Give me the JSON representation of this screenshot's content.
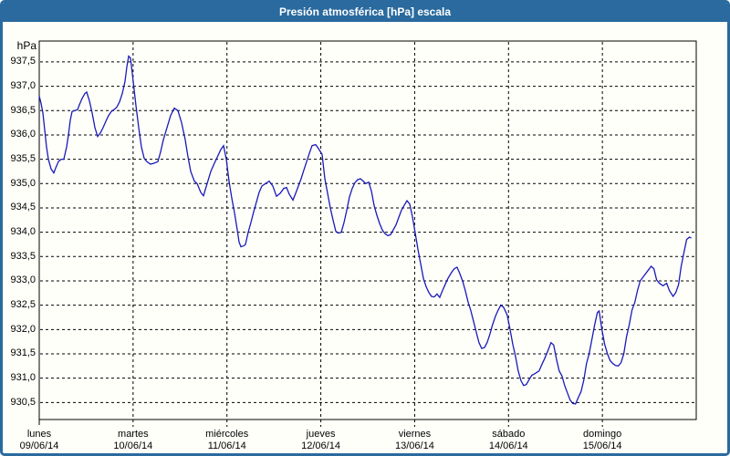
{
  "window": {
    "title": "Presión atmosférica [hPa] escala"
  },
  "colors": {
    "accent_blue": "#2a6a9e",
    "line_blue": "#1a1ab9",
    "grid_black": "#000000",
    "plot_background": "#fffffa",
    "title_text": "#ffffff"
  },
  "chart_data": {
    "type": "line",
    "title": "Presión atmosférica [hPa] escala",
    "ylabel": "hPa",
    "xlabel": "",
    "grid": "dashed",
    "legend": "none",
    "ylim": [
      930.15,
      937.93
    ],
    "x_domain_days": [
      0,
      7
    ],
    "yticks": [
      {
        "value": 937.5,
        "label": "937,5"
      },
      {
        "value": 937.0,
        "label": "937,0"
      },
      {
        "value": 936.5,
        "label": "936,5"
      },
      {
        "value": 936.0,
        "label": "936,0"
      },
      {
        "value": 935.5,
        "label": "935,5"
      },
      {
        "value": 935.0,
        "label": "935,0"
      },
      {
        "value": 934.5,
        "label": "934,5"
      },
      {
        "value": 934.0,
        "label": "934,0"
      },
      {
        "value": 933.5,
        "label": "933,5"
      },
      {
        "value": 933.0,
        "label": "933,0"
      },
      {
        "value": 932.5,
        "label": "932,5"
      },
      {
        "value": 932.0,
        "label": "932,0"
      },
      {
        "value": 931.5,
        "label": "931,5"
      },
      {
        "value": 931.0,
        "label": "931,0"
      },
      {
        "value": 930.5,
        "label": "930,5"
      }
    ],
    "xticks": [
      {
        "day": "lunes",
        "date": "09/06/14"
      },
      {
        "day": "martes",
        "date": "10/06/14"
      },
      {
        "day": "miércoles",
        "date": "11/06/14"
      },
      {
        "day": "jueves",
        "date": "12/06/14"
      },
      {
        "day": "viernes",
        "date": "13/06/14"
      },
      {
        "day": "sábado",
        "date": "14/06/14"
      },
      {
        "day": "domingo",
        "date": "15/06/14"
      }
    ],
    "series": [
      {
        "name": "Presión atmosférica",
        "unit": "hPa",
        "points": [
          [
            0.0,
            936.8
          ],
          [
            0.019,
            936.65
          ],
          [
            0.039,
            936.45
          ],
          [
            0.058,
            936.1
          ],
          [
            0.078,
            935.75
          ],
          [
            0.097,
            935.5
          ],
          [
            0.126,
            935.3
          ],
          [
            0.156,
            935.22
          ],
          [
            0.175,
            935.32
          ],
          [
            0.204,
            935.45
          ],
          [
            0.233,
            935.5
          ],
          [
            0.262,
            935.5
          ],
          [
            0.292,
            935.75
          ],
          [
            0.311,
            936.0
          ],
          [
            0.331,
            936.3
          ],
          [
            0.35,
            936.48
          ],
          [
            0.379,
            936.5
          ],
          [
            0.408,
            936.52
          ],
          [
            0.428,
            936.62
          ],
          [
            0.457,
            936.75
          ],
          [
            0.486,
            936.85
          ],
          [
            0.506,
            936.88
          ],
          [
            0.535,
            936.7
          ],
          [
            0.564,
            936.45
          ],
          [
            0.593,
            936.15
          ],
          [
            0.622,
            935.97
          ],
          [
            0.651,
            936.04
          ],
          [
            0.681,
            936.15
          ],
          [
            0.71,
            936.28
          ],
          [
            0.739,
            936.4
          ],
          [
            0.768,
            936.48
          ],
          [
            0.797,
            936.52
          ],
          [
            0.826,
            936.57
          ],
          [
            0.856,
            936.68
          ],
          [
            0.885,
            936.85
          ],
          [
            0.914,
            937.1
          ],
          [
            0.933,
            937.4
          ],
          [
            0.953,
            937.62
          ],
          [
            0.972,
            937.58
          ],
          [
            1.001,
            937.1
          ],
          [
            1.031,
            936.6
          ],
          [
            1.06,
            936.15
          ],
          [
            1.089,
            935.75
          ],
          [
            1.118,
            935.52
          ],
          [
            1.147,
            935.45
          ],
          [
            1.186,
            935.4
          ],
          [
            1.225,
            935.42
          ],
          [
            1.264,
            935.45
          ],
          [
            1.293,
            935.65
          ],
          [
            1.322,
            935.9
          ],
          [
            1.361,
            936.15
          ],
          [
            1.4,
            936.4
          ],
          [
            1.439,
            936.55
          ],
          [
            1.478,
            936.5
          ],
          [
            1.517,
            936.25
          ],
          [
            1.556,
            935.9
          ],
          [
            1.585,
            935.55
          ],
          [
            1.614,
            935.25
          ],
          [
            1.653,
            935.05
          ],
          [
            1.682,
            935.0
          ],
          [
            1.721,
            934.82
          ],
          [
            1.75,
            934.75
          ],
          [
            1.789,
            935.0
          ],
          [
            1.828,
            935.25
          ],
          [
            1.867,
            935.42
          ],
          [
            1.906,
            935.58
          ],
          [
            1.935,
            935.7
          ],
          [
            1.964,
            935.78
          ],
          [
            1.993,
            935.5
          ],
          [
            2.022,
            935.05
          ],
          [
            2.051,
            934.7
          ],
          [
            2.081,
            934.4
          ],
          [
            2.11,
            934.05
          ],
          [
            2.129,
            933.8
          ],
          [
            2.149,
            933.7
          ],
          [
            2.178,
            933.72
          ],
          [
            2.197,
            933.75
          ],
          [
            2.226,
            934.0
          ],
          [
            2.256,
            934.2
          ],
          [
            2.285,
            934.42
          ],
          [
            2.314,
            934.62
          ],
          [
            2.343,
            934.82
          ],
          [
            2.372,
            934.95
          ],
          [
            2.411,
            935.0
          ],
          [
            2.45,
            935.05
          ],
          [
            2.489,
            934.95
          ],
          [
            2.528,
            934.74
          ],
          [
            2.567,
            934.8
          ],
          [
            2.606,
            934.9
          ],
          [
            2.635,
            934.92
          ],
          [
            2.664,
            934.78
          ],
          [
            2.703,
            934.66
          ],
          [
            2.732,
            934.8
          ],
          [
            2.761,
            934.95
          ],
          [
            2.79,
            935.1
          ],
          [
            2.819,
            935.28
          ],
          [
            2.849,
            935.45
          ],
          [
            2.878,
            935.62
          ],
          [
            2.907,
            935.78
          ],
          [
            2.946,
            935.8
          ],
          [
            2.975,
            935.72
          ],
          [
            3.014,
            935.6
          ],
          [
            3.043,
            935.1
          ],
          [
            3.072,
            934.8
          ],
          [
            3.101,
            934.5
          ],
          [
            3.131,
            934.25
          ],
          [
            3.16,
            934.02
          ],
          [
            3.189,
            933.98
          ],
          [
            3.218,
            934.0
          ],
          [
            3.247,
            934.2
          ],
          [
            3.276,
            934.45
          ],
          [
            3.305,
            934.72
          ],
          [
            3.335,
            934.9
          ],
          [
            3.364,
            935.02
          ],
          [
            3.393,
            935.08
          ],
          [
            3.422,
            935.1
          ],
          [
            3.451,
            935.05
          ],
          [
            3.48,
            935.0
          ],
          [
            3.51,
            935.03
          ],
          [
            3.539,
            934.85
          ],
          [
            3.568,
            934.55
          ],
          [
            3.597,
            934.35
          ],
          [
            3.626,
            934.18
          ],
          [
            3.655,
            934.05
          ],
          [
            3.684,
            933.97
          ],
          [
            3.714,
            933.93
          ],
          [
            3.743,
            933.95
          ],
          [
            3.772,
            934.05
          ],
          [
            3.801,
            934.15
          ],
          [
            3.83,
            934.3
          ],
          [
            3.859,
            934.45
          ],
          [
            3.888,
            934.55
          ],
          [
            3.918,
            934.65
          ],
          [
            3.947,
            934.58
          ],
          [
            3.976,
            934.32
          ],
          [
            4.005,
            934.0
          ],
          [
            4.035,
            933.65
          ],
          [
            4.064,
            933.35
          ],
          [
            4.093,
            933.05
          ],
          [
            4.122,
            932.88
          ],
          [
            4.151,
            932.76
          ],
          [
            4.18,
            932.68
          ],
          [
            4.209,
            932.67
          ],
          [
            4.238,
            932.73
          ],
          [
            4.267,
            932.66
          ],
          [
            4.296,
            932.8
          ],
          [
            4.326,
            932.93
          ],
          [
            4.355,
            933.05
          ],
          [
            4.394,
            933.18
          ],
          [
            4.423,
            933.25
          ],
          [
            4.452,
            933.28
          ],
          [
            4.481,
            933.15
          ],
          [
            4.51,
            933.0
          ],
          [
            4.539,
            932.8
          ],
          [
            4.568,
            932.57
          ],
          [
            4.597,
            932.4
          ],
          [
            4.627,
            932.17
          ],
          [
            4.656,
            931.95
          ],
          [
            4.685,
            931.73
          ],
          [
            4.714,
            931.61
          ],
          [
            4.743,
            931.63
          ],
          [
            4.772,
            931.73
          ],
          [
            4.801,
            931.9
          ],
          [
            4.83,
            932.1
          ],
          [
            4.86,
            932.27
          ],
          [
            4.889,
            932.4
          ],
          [
            4.918,
            932.5
          ],
          [
            4.947,
            932.46
          ],
          [
            4.986,
            932.3
          ],
          [
            5.015,
            932.02
          ],
          [
            5.045,
            931.7
          ],
          [
            5.074,
            931.45
          ],
          [
            5.103,
            931.15
          ],
          [
            5.132,
            930.95
          ],
          [
            5.161,
            930.85
          ],
          [
            5.19,
            930.87
          ],
          [
            5.219,
            930.97
          ],
          [
            5.248,
            931.06
          ],
          [
            5.287,
            931.1
          ],
          [
            5.326,
            931.15
          ],
          [
            5.355,
            931.28
          ],
          [
            5.384,
            931.4
          ],
          [
            5.423,
            931.58
          ],
          [
            5.452,
            931.73
          ],
          [
            5.481,
            931.68
          ],
          [
            5.51,
            931.4
          ],
          [
            5.54,
            931.15
          ],
          [
            5.569,
            931.05
          ],
          [
            5.598,
            930.85
          ],
          [
            5.627,
            930.7
          ],
          [
            5.656,
            930.55
          ],
          [
            5.685,
            930.48
          ],
          [
            5.714,
            930.47
          ],
          [
            5.743,
            930.6
          ],
          [
            5.772,
            930.72
          ],
          [
            5.801,
            930.95
          ],
          [
            5.83,
            931.3
          ],
          [
            5.859,
            931.5
          ],
          [
            5.889,
            931.8
          ],
          [
            5.918,
            932.1
          ],
          [
            5.947,
            932.35
          ],
          [
            5.966,
            932.38
          ],
          [
            5.995,
            932.0
          ],
          [
            6.024,
            931.7
          ],
          [
            6.054,
            931.5
          ],
          [
            6.083,
            931.36
          ],
          [
            6.112,
            931.3
          ],
          [
            6.141,
            931.26
          ],
          [
            6.17,
            931.25
          ],
          [
            6.199,
            931.32
          ],
          [
            6.228,
            931.5
          ],
          [
            6.257,
            931.85
          ],
          [
            6.286,
            932.1
          ],
          [
            6.316,
            932.4
          ],
          [
            6.345,
            932.55
          ],
          [
            6.374,
            932.8
          ],
          [
            6.403,
            933.0
          ],
          [
            6.442,
            933.1
          ],
          [
            6.481,
            933.2
          ],
          [
            6.52,
            933.3
          ],
          [
            6.549,
            933.25
          ],
          [
            6.578,
            933.02
          ],
          [
            6.607,
            932.95
          ],
          [
            6.646,
            932.9
          ],
          [
            6.685,
            932.95
          ],
          [
            6.714,
            932.8
          ],
          [
            6.753,
            932.68
          ],
          [
            6.782,
            932.76
          ],
          [
            6.811,
            932.92
          ],
          [
            6.84,
            933.3
          ],
          [
            6.869,
            933.58
          ],
          [
            6.898,
            933.85
          ],
          [
            6.927,
            933.9
          ],
          [
            6.947,
            933.88
          ]
        ]
      }
    ]
  }
}
